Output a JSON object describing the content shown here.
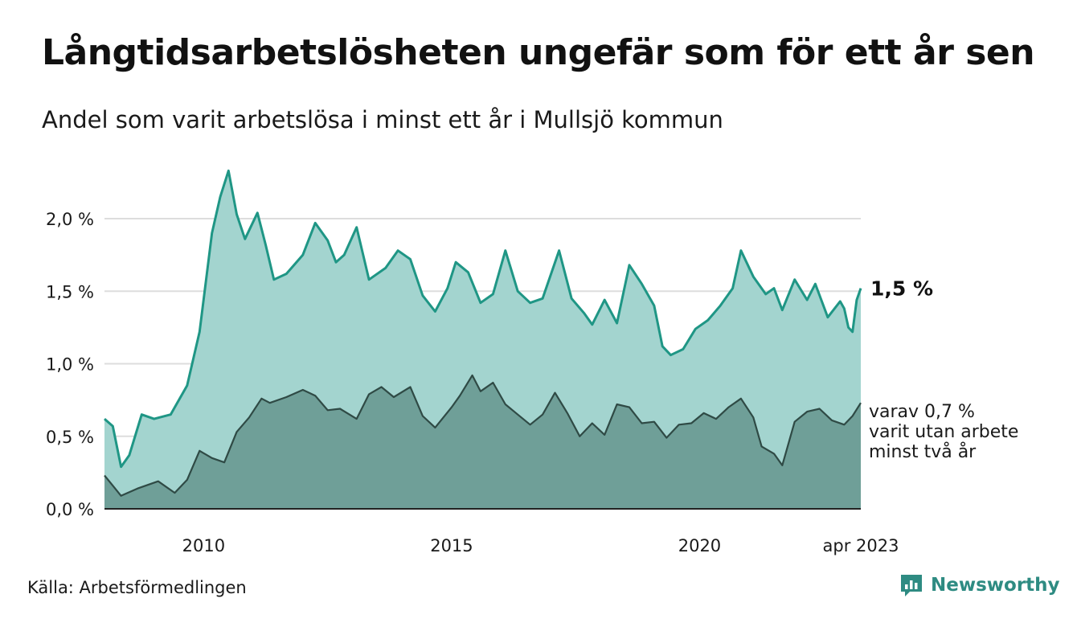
{
  "header": {
    "title": "Långtidsarbetslösheten ungefär som för ett år sen",
    "subtitle": "Andel som varit arbetslösa i minst ett år i Mullsjö kommun"
  },
  "footer": {
    "source": "Källa: Arbetsförmedlingen",
    "brand": "Newsworthy"
  },
  "colors": {
    "series_total_line": "#1f9685",
    "series_total_fill": "#a3d4cf",
    "series_long_line": "#2f4a45",
    "series_long_fill": "#6f9f98",
    "grid": "#dddddd",
    "brand": "#2e8b82"
  },
  "chart_data": {
    "type": "area",
    "title": "Långtidsarbetslösheten ungefär som för ett år sen",
    "subtitle": "Andel som varit arbetslösa i minst ett år i Mullsjö kommun",
    "xlabel": "",
    "ylabel": "",
    "x_start": "2008-01",
    "x_end": "2023-04",
    "x_frequency": "monthly",
    "xlim": [
      "2008-01",
      "2023-04"
    ],
    "ylim": [
      0,
      2.2
    ],
    "y_ticks": [
      "0,0 %",
      "0,5 %",
      "1,0 %",
      "1,5 %",
      "2,0 %"
    ],
    "y_tick_values": [
      0,
      0.5,
      1.0,
      1.5,
      2.0
    ],
    "x_ticks": [
      "2010",
      "2015",
      "2020",
      "apr 2023"
    ],
    "x_tick_values": [
      "2010-01",
      "2015-01",
      "2020-01",
      "2023-04"
    ],
    "grid": true,
    "end_label": "1,5 %",
    "annotation": [
      "varav 0,7 %",
      "varit utan arbete",
      "minst två år"
    ],
    "series": [
      {
        "name": "",
        "anchors": [
          [
            "2008-01",
            0.62
          ],
          [
            "2008-03",
            0.57
          ],
          [
            "2008-05",
            0.29
          ],
          [
            "2008-07",
            0.37
          ],
          [
            "2008-10",
            0.65
          ],
          [
            "2009-01",
            0.62
          ],
          [
            "2009-05",
            0.65
          ],
          [
            "2009-09",
            0.85
          ],
          [
            "2009-12",
            1.22
          ],
          [
            "2010-03",
            1.9
          ],
          [
            "2010-05",
            2.15
          ],
          [
            "2010-07",
            2.33
          ],
          [
            "2010-09",
            2.03
          ],
          [
            "2010-11",
            1.86
          ],
          [
            "2011-02",
            2.04
          ],
          [
            "2011-04",
            1.82
          ],
          [
            "2011-06",
            1.58
          ],
          [
            "2011-09",
            1.62
          ],
          [
            "2012-01",
            1.75
          ],
          [
            "2012-04",
            1.97
          ],
          [
            "2012-07",
            1.85
          ],
          [
            "2012-09",
            1.7
          ],
          [
            "2012-11",
            1.75
          ],
          [
            "2013-02",
            1.94
          ],
          [
            "2013-05",
            1.58
          ],
          [
            "2013-09",
            1.66
          ],
          [
            "2013-12",
            1.78
          ],
          [
            "2014-03",
            1.72
          ],
          [
            "2014-06",
            1.47
          ],
          [
            "2014-09",
            1.36
          ],
          [
            "2014-12",
            1.52
          ],
          [
            "2015-02",
            1.7
          ],
          [
            "2015-05",
            1.63
          ],
          [
            "2015-08",
            1.42
          ],
          [
            "2015-11",
            1.48
          ],
          [
            "2016-02",
            1.78
          ],
          [
            "2016-05",
            1.5
          ],
          [
            "2016-08",
            1.42
          ],
          [
            "2016-11",
            1.45
          ],
          [
            "2017-03",
            1.78
          ],
          [
            "2017-06",
            1.45
          ],
          [
            "2017-09",
            1.35
          ],
          [
            "2017-11",
            1.27
          ],
          [
            "2018-02",
            1.44
          ],
          [
            "2018-05",
            1.28
          ],
          [
            "2018-08",
            1.68
          ],
          [
            "2018-11",
            1.55
          ],
          [
            "2019-02",
            1.4
          ],
          [
            "2019-04",
            1.12
          ],
          [
            "2019-06",
            1.06
          ],
          [
            "2019-09",
            1.1
          ],
          [
            "2019-12",
            1.24
          ],
          [
            "2020-03",
            1.3
          ],
          [
            "2020-06",
            1.4
          ],
          [
            "2020-09",
            1.52
          ],
          [
            "2020-11",
            1.78
          ],
          [
            "2021-02",
            1.6
          ],
          [
            "2021-05",
            1.48
          ],
          [
            "2021-07",
            1.52
          ],
          [
            "2021-09",
            1.37
          ],
          [
            "2021-12",
            1.58
          ],
          [
            "2022-03",
            1.44
          ],
          [
            "2022-05",
            1.55
          ],
          [
            "2022-08",
            1.32
          ],
          [
            "2022-11",
            1.43
          ],
          [
            "2022-12",
            1.38
          ],
          [
            "2023-01",
            1.25
          ],
          [
            "2023-02",
            1.22
          ],
          [
            "2023-03",
            1.44
          ],
          [
            "2023-04",
            1.52
          ]
        ]
      },
      {
        "name": "",
        "anchors": [
          [
            "2008-01",
            0.23
          ],
          [
            "2008-03",
            0.16
          ],
          [
            "2008-05",
            0.09
          ],
          [
            "2008-09",
            0.14
          ],
          [
            "2009-02",
            0.19
          ],
          [
            "2009-06",
            0.11
          ],
          [
            "2009-09",
            0.2
          ],
          [
            "2009-12",
            0.4
          ],
          [
            "2010-03",
            0.35
          ],
          [
            "2010-06",
            0.32
          ],
          [
            "2010-09",
            0.53
          ],
          [
            "2010-12",
            0.63
          ],
          [
            "2011-03",
            0.76
          ],
          [
            "2011-05",
            0.73
          ],
          [
            "2011-09",
            0.77
          ],
          [
            "2012-01",
            0.82
          ],
          [
            "2012-04",
            0.78
          ],
          [
            "2012-07",
            0.68
          ],
          [
            "2012-10",
            0.69
          ],
          [
            "2013-02",
            0.62
          ],
          [
            "2013-05",
            0.79
          ],
          [
            "2013-08",
            0.84
          ],
          [
            "2013-11",
            0.77
          ],
          [
            "2014-03",
            0.84
          ],
          [
            "2014-06",
            0.64
          ],
          [
            "2014-09",
            0.56
          ],
          [
            "2015-01",
            0.7
          ],
          [
            "2015-03",
            0.78
          ],
          [
            "2015-06",
            0.92
          ],
          [
            "2015-08",
            0.81
          ],
          [
            "2015-11",
            0.87
          ],
          [
            "2016-02",
            0.72
          ],
          [
            "2016-05",
            0.65
          ],
          [
            "2016-08",
            0.58
          ],
          [
            "2016-11",
            0.65
          ],
          [
            "2017-02",
            0.8
          ],
          [
            "2017-05",
            0.66
          ],
          [
            "2017-08",
            0.5
          ],
          [
            "2017-11",
            0.59
          ],
          [
            "2018-02",
            0.51
          ],
          [
            "2018-05",
            0.72
          ],
          [
            "2018-08",
            0.7
          ],
          [
            "2018-11",
            0.59
          ],
          [
            "2019-02",
            0.6
          ],
          [
            "2019-05",
            0.49
          ],
          [
            "2019-08",
            0.58
          ],
          [
            "2019-11",
            0.59
          ],
          [
            "2020-02",
            0.66
          ],
          [
            "2020-05",
            0.62
          ],
          [
            "2020-08",
            0.7
          ],
          [
            "2020-11",
            0.76
          ],
          [
            "2021-02",
            0.63
          ],
          [
            "2021-04",
            0.43
          ],
          [
            "2021-07",
            0.38
          ],
          [
            "2021-09",
            0.3
          ],
          [
            "2021-12",
            0.6
          ],
          [
            "2022-03",
            0.67
          ],
          [
            "2022-06",
            0.69
          ],
          [
            "2022-09",
            0.61
          ],
          [
            "2022-12",
            0.58
          ],
          [
            "2023-02",
            0.64
          ],
          [
            "2023-04",
            0.73
          ]
        ]
      }
    ]
  }
}
